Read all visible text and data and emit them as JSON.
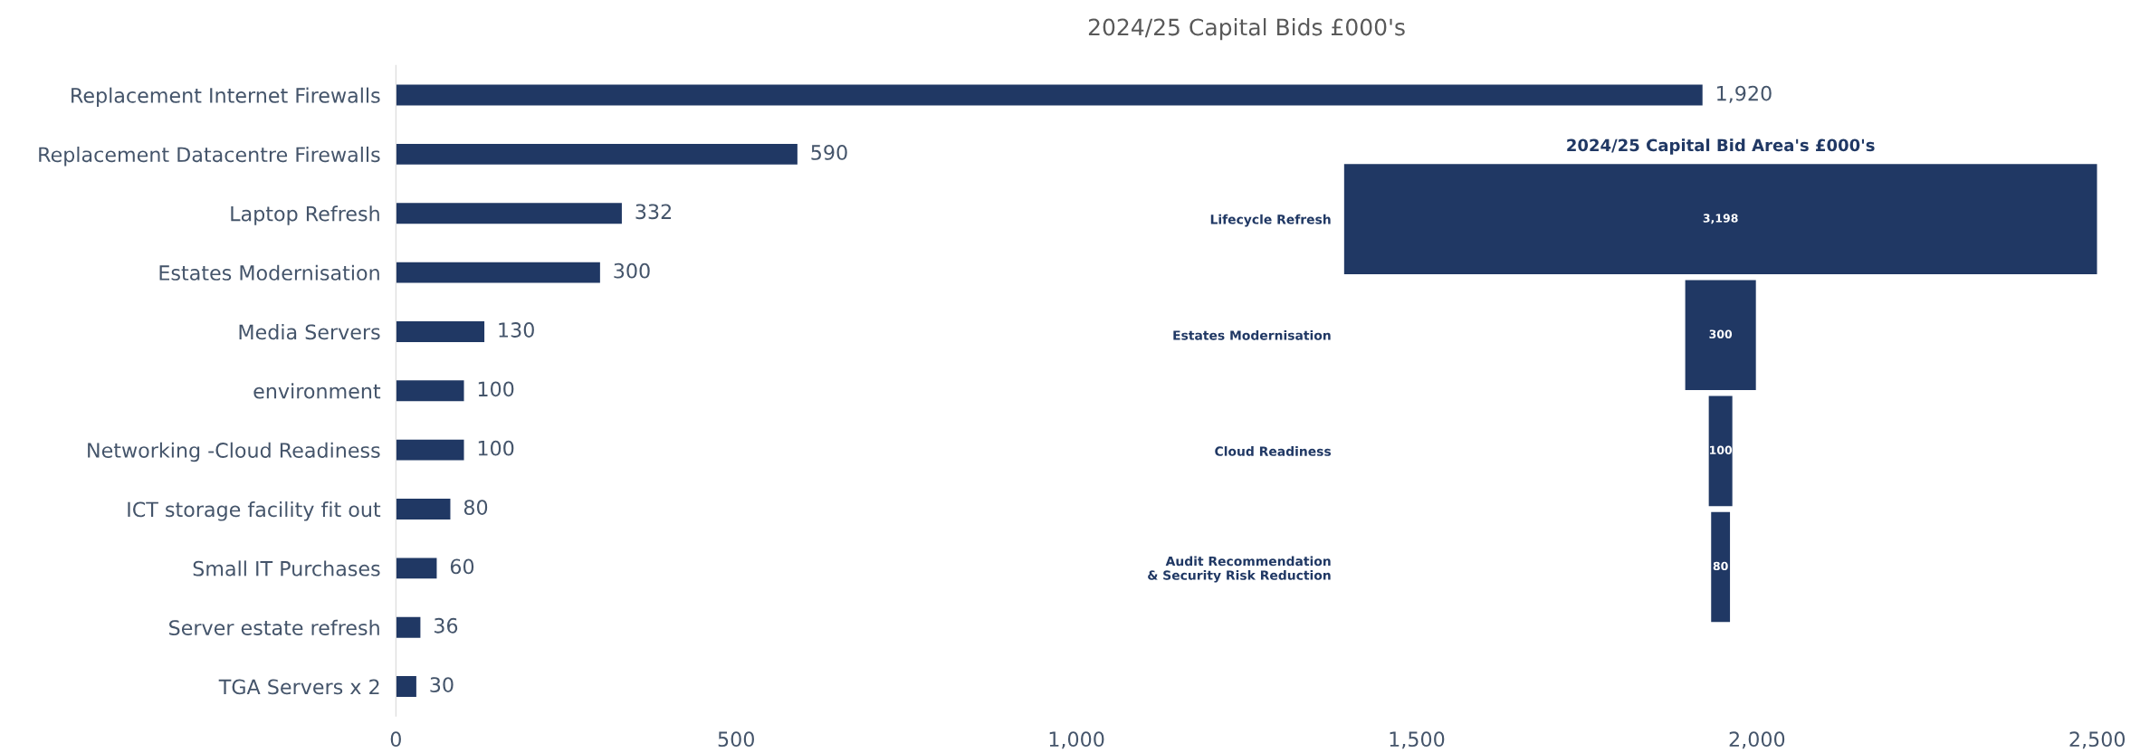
{
  "chart_data": [
    {
      "type": "bar",
      "orientation": "horizontal",
      "title": "2024/25 Capital Bids £000's",
      "categories": [
        "Replacement Internet Firewalls",
        "Replacement Datacentre Firewalls",
        "Laptop Refresh",
        "Estates Modernisation",
        "Media Servers",
        "environment",
        "Networking -Cloud Readiness",
        "ICT storage facility fit out",
        "Small IT Purchases",
        "Server estate refresh",
        "TGA Servers x 2"
      ],
      "values": [
        1920,
        590,
        332,
        300,
        130,
        100,
        100,
        80,
        60,
        36,
        30
      ],
      "color": "#203864",
      "xlim": [
        0,
        2500
      ],
      "xticks": [
        0,
        500,
        {
          "value": 1000,
          "label": "1,000"
        },
        {
          "value": 1500,
          "label": "1,500"
        },
        {
          "value": 2000,
          "label": "2,000"
        },
        {
          "value": 2500,
          "label": "2,500"
        }
      ],
      "value_labels": [
        "1,920",
        "590",
        "332",
        "300",
        "130",
        "100",
        "100",
        "80",
        "60",
        "36",
        "30"
      ],
      "grid": false,
      "legend": false
    },
    {
      "type": "other",
      "title": "2024/25 Capital Bid Area's £000's",
      "categories": [
        "Lifecycle Refresh",
        "Estates Modernisation",
        "Cloud Readiness",
        "Audit Recommendation\n& Security Risk Reduction"
      ],
      "values": [
        3198,
        300,
        100,
        80
      ],
      "value_labels": [
        "3,198",
        "300",
        "100",
        "80"
      ],
      "color": "#203864"
    }
  ]
}
